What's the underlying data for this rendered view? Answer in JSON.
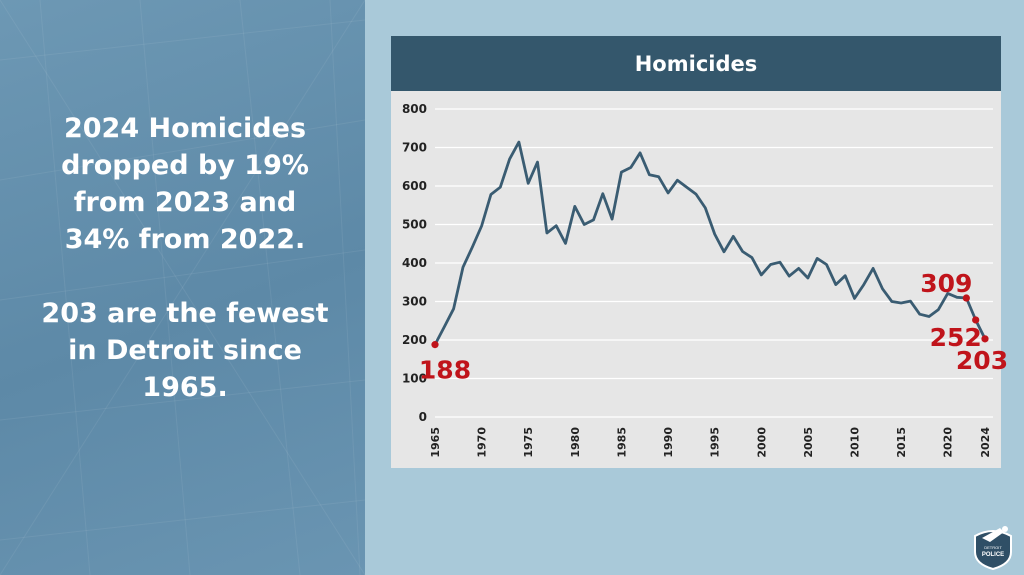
{
  "statement": {
    "line1": "2024 Homicides",
    "line2": "dropped by 19%",
    "line3": "from 2023 and",
    "line4": "34% from 2022.",
    "line5": "203 are the fewest",
    "line6": "in Detroit since",
    "line7": "1965."
  },
  "logo": {
    "icon": "detroit-police-badge-icon",
    "text_top": "DETROIT",
    "text_main": "POLICE"
  },
  "colors": {
    "line": "#3a5c72",
    "highlight": "#c0141b",
    "header_bg": "#34576c",
    "panel_bg": "#e6e6e6"
  },
  "chart_data": {
    "type": "line",
    "title": "Homicides",
    "xlabel": "",
    "ylabel": "",
    "ylim": [
      0,
      800
    ],
    "yticks": [
      0,
      100,
      200,
      300,
      400,
      500,
      600,
      700,
      800
    ],
    "xticks": [
      1965,
      1970,
      1975,
      1980,
      1985,
      1990,
      1995,
      2000,
      2005,
      2010,
      2015,
      2020,
      2024
    ],
    "grid": "horizontal",
    "x": [
      1965,
      1966,
      1967,
      1968,
      1969,
      1970,
      1971,
      1972,
      1973,
      1974,
      1975,
      1976,
      1977,
      1978,
      1979,
      1980,
      1981,
      1982,
      1983,
      1984,
      1985,
      1986,
      1987,
      1988,
      1989,
      1990,
      1991,
      1992,
      1993,
      1994,
      1995,
      1996,
      1997,
      1998,
      1999,
      2000,
      2001,
      2002,
      2003,
      2004,
      2005,
      2006,
      2007,
      2008,
      2009,
      2010,
      2011,
      2012,
      2013,
      2014,
      2015,
      2016,
      2017,
      2018,
      2019,
      2020,
      2021,
      2022,
      2023,
      2024
    ],
    "values": [
      188,
      234,
      281,
      389,
      441,
      496,
      578,
      597,
      670,
      714,
      607,
      662,
      478,
      497,
      451,
      547,
      500,
      512,
      580,
      514,
      636,
      648,
      686,
      629,
      624,
      582,
      615,
      597,
      579,
      543,
      475,
      429,
      469,
      430,
      414,
      369,
      396,
      402,
      366,
      386,
      361,
      412,
      396,
      344,
      367,
      308,
      344,
      386,
      333,
      300,
      296,
      301,
      267,
      261,
      279,
      321,
      311,
      309,
      252,
      203
    ],
    "annotations": [
      {
        "year": 1965,
        "value": 188,
        "label": "188"
      },
      {
        "year": 2022,
        "value": 309,
        "label": "309"
      },
      {
        "year": 2023,
        "value": 252,
        "label": "252"
      },
      {
        "year": 2024,
        "value": 203,
        "label": "203"
      }
    ]
  }
}
